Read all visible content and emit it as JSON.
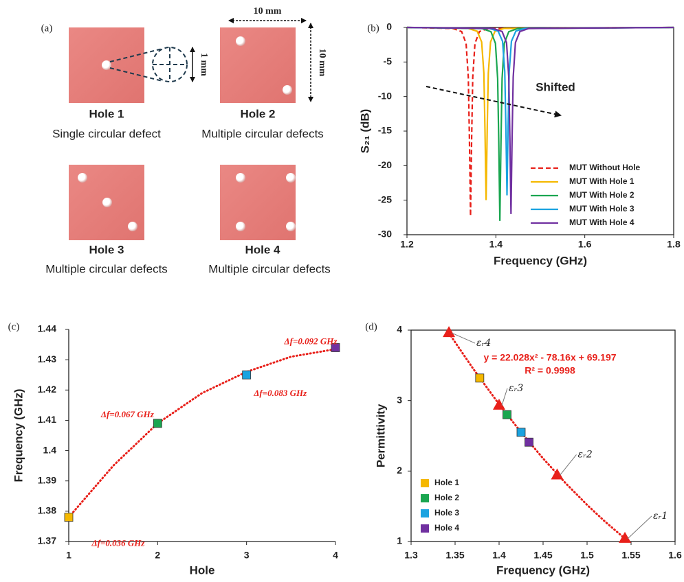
{
  "panel_a": {
    "label": "(a)",
    "width_label": "10 mm",
    "height_label": "10 mm",
    "hole_label": "1 mm",
    "samples": [
      {
        "title": "Hole 1",
        "caption": "Single circular defect"
      },
      {
        "title": "Hole 2",
        "caption": "Multiple circular defects"
      },
      {
        "title": "Hole 3",
        "caption": "Multiple circular defects"
      },
      {
        "title": "Hole 4",
        "caption": "Multiple circular defects"
      }
    ]
  },
  "chart_data": [
    {
      "type": "line",
      "panel_label": "(b)",
      "x_label": "Frequency (GHz)",
      "y_label": "S₂₁ (dB)",
      "xlim": [
        1.2,
        1.8
      ],
      "xticks": [
        1.2,
        1.4,
        1.6,
        1.8
      ],
      "ylim": [
        -30,
        0
      ],
      "yticks": [
        0,
        -5,
        -10,
        -15,
        -20,
        -25,
        -30
      ],
      "annotation": "Shifted",
      "legend": "lower right",
      "series": [
        {
          "name": "MUT Without Hole",
          "color": "#e8201a",
          "dashed": true,
          "x": [
            1.2,
            1.303,
            1.323,
            1.333,
            1.338,
            1.3405,
            1.343,
            1.3455,
            1.348,
            1.353,
            1.363,
            1.383,
            1.8
          ],
          "values": [
            0,
            -0.15,
            -0.6,
            -2.3,
            -7.2,
            -16.1,
            -27.3,
            -16.1,
            -7.2,
            -2.3,
            -0.6,
            -0.15,
            0
          ]
        },
        {
          "name": "MUT With Hole 1",
          "color": "#f5b800",
          "dashed": false,
          "x": [
            1.2,
            1.338,
            1.358,
            1.368,
            1.373,
            1.3755,
            1.378,
            1.3805,
            1.383,
            1.388,
            1.398,
            1.418,
            1.8
          ],
          "values": [
            0,
            -0.14,
            -0.55,
            -2.1,
            -6.6,
            -14.8,
            -25,
            -14.8,
            -6.6,
            -2.1,
            -0.55,
            -0.14,
            0
          ]
        },
        {
          "name": "MUT With Hole 2",
          "color": "#1aa650",
          "dashed": false,
          "x": [
            1.2,
            1.369,
            1.389,
            1.399,
            1.404,
            1.4065,
            1.409,
            1.4115,
            1.414,
            1.419,
            1.429,
            1.449,
            1.8
          ],
          "values": [
            0,
            -0.16,
            -0.62,
            -2.3,
            -7.4,
            -16.5,
            -28,
            -16.5,
            -7.4,
            -2.3,
            -0.62,
            -0.16,
            0
          ]
        },
        {
          "name": "MUT With Hole 3",
          "color": "#1aa3e0",
          "dashed": false,
          "x": [
            1.2,
            1.385,
            1.405,
            1.415,
            1.42,
            1.4225,
            1.425,
            1.4275,
            1.43,
            1.435,
            1.445,
            1.465,
            1.8
          ],
          "values": [
            0,
            -0.14,
            -0.53,
            -2,
            -6.4,
            -14.3,
            -24.3,
            -14.3,
            -6.4,
            -2,
            -0.53,
            -0.14,
            0
          ]
        },
        {
          "name": "MUT With Hole 4",
          "color": "#7030a0",
          "dashed": false,
          "x": [
            1.2,
            1.394,
            1.414,
            1.424,
            1.429,
            1.4315,
            1.434,
            1.4365,
            1.439,
            1.444,
            1.454,
            1.474,
            1.8
          ],
          "values": [
            0,
            -0.15,
            -0.59,
            -2.2,
            -7.2,
            -15.9,
            -27,
            -15.9,
            -7.2,
            -2.2,
            -0.59,
            -0.15,
            0
          ]
        }
      ]
    },
    {
      "type": "scatter",
      "panel_label": "(c)",
      "x_label": "Hole",
      "y_label": "Frequency (GHz)",
      "xlim": [
        1,
        4
      ],
      "xticks": [
        1,
        2,
        3,
        4
      ],
      "ylim": [
        1.37,
        1.44
      ],
      "yticks": [
        1.37,
        1.38,
        1.39,
        1.4,
        1.41,
        1.42,
        1.43,
        1.44
      ],
      "series": [
        {
          "marker": "square",
          "x": [
            1,
            2,
            3,
            4
          ],
          "values": [
            1.378,
            1.409,
            1.425,
            1.434
          ],
          "colors": [
            "#f5b800",
            "#1aa650",
            "#1aa3e0",
            "#7030a0"
          ],
          "labels": [
            "Δf=0.036 GHz",
            "Δf=0.067 GHz",
            "Δf=0.083 GHz",
            "Δf=0.092 GHz"
          ]
        }
      ],
      "trendline": {
        "color": "#e8201a",
        "x": [
          1,
          1.5,
          2,
          2.5,
          3,
          3.5,
          4
        ],
        "values": [
          1.378,
          1.395,
          1.409,
          1.419,
          1.426,
          1.431,
          1.4335
        ]
      }
    },
    {
      "type": "scatter",
      "panel_label": "(d)",
      "x_label": "Frequency (GHz)",
      "y_label": "Permittivity",
      "xlim": [
        1.3,
        1.6
      ],
      "xticks": [
        1.3,
        1.35,
        1.4,
        1.45,
        1.5,
        1.55,
        1.6
      ],
      "ylim": [
        1,
        4
      ],
      "yticks": [
        1,
        2,
        3,
        4
      ],
      "legend": "lower left",
      "annotations": [
        "y = 22.028x² - 78.16x + 69.197",
        "R² = 0.9998"
      ],
      "series": [
        {
          "name": "Hole 1",
          "color": "#f5b800",
          "marker": "square",
          "x": [
            1.378
          ],
          "values": [
            3.32
          ]
        },
        {
          "name": "Hole 2",
          "color": "#1aa650",
          "marker": "square",
          "x": [
            1.409
          ],
          "values": [
            2.8
          ]
        },
        {
          "name": "Hole 3",
          "color": "#1aa3e0",
          "marker": "square",
          "x": [
            1.425
          ],
          "values": [
            2.55
          ]
        },
        {
          "name": "Hole 4",
          "color": "#7030a0",
          "marker": "square",
          "x": [
            1.434
          ],
          "values": [
            2.41
          ]
        },
        {
          "color": "#e8201a",
          "marker": "triangle",
          "x": [
            1.343,
            1.4,
            1.466,
            1.543
          ],
          "values": [
            3.97,
            2.94,
            1.95,
            1.05
          ],
          "labels": [
            "εᵣ4",
            "εᵣ3",
            "εᵣ2",
            "εᵣ1"
          ]
        }
      ],
      "trendline": {
        "color": "#e8201a",
        "x": [
          1.343,
          1.37,
          1.4,
          1.425,
          1.45,
          1.475,
          1.5,
          1.52,
          1.543
        ],
        "values": [
          3.957,
          3.462,
          2.948,
          2.55,
          2.179,
          1.836,
          1.52,
          1.287,
          1.041
        ]
      }
    }
  ]
}
